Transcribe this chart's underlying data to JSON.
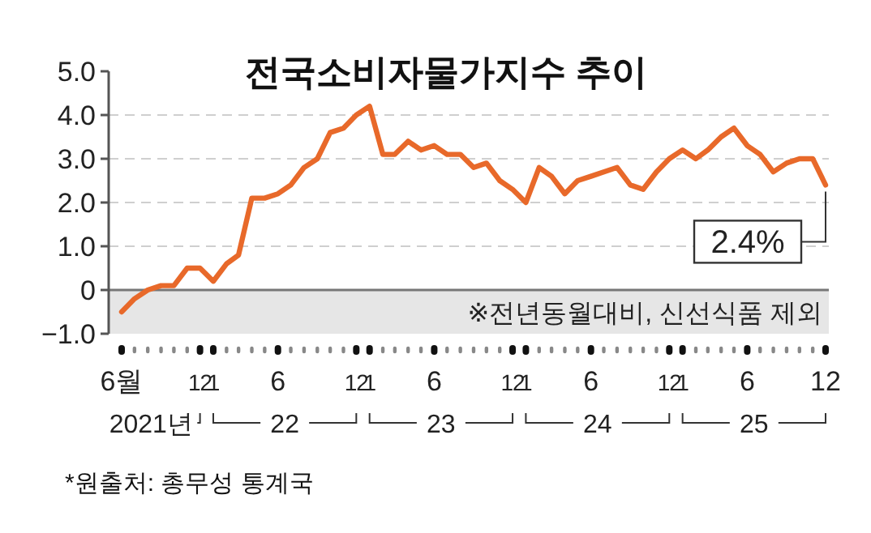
{
  "chart_data": {
    "type": "line",
    "title": "전국소비자물가지수 추이",
    "x": [
      "2021-06",
      "2021-07",
      "2021-08",
      "2021-09",
      "2021-10",
      "2021-11",
      "2021-12",
      "2022-01",
      "2022-02",
      "2022-03",
      "2022-04",
      "2022-05",
      "2022-06",
      "2022-07",
      "2022-08",
      "2022-09",
      "2022-10",
      "2022-11",
      "2022-12",
      "2023-01",
      "2023-02",
      "2023-03",
      "2023-04",
      "2023-05",
      "2023-06",
      "2023-07",
      "2023-08",
      "2023-09",
      "2023-10",
      "2023-11",
      "2023-12",
      "2024-01",
      "2024-02",
      "2024-03",
      "2024-04",
      "2024-05",
      "2024-06",
      "2024-07",
      "2024-08",
      "2024-09",
      "2024-10",
      "2024-11",
      "2024-12",
      "2025-01",
      "2025-02",
      "2025-03",
      "2025-04",
      "2025-05",
      "2025-06",
      "2025-07",
      "2025-08",
      "2025-09",
      "2025-10",
      "2025-11",
      "2025-12"
    ],
    "series": [
      {
        "color": "#e8692a",
        "values": [
          -0.5,
          -0.2,
          0.0,
          0.1,
          0.1,
          0.5,
          0.5,
          0.2,
          0.6,
          0.8,
          2.1,
          2.1,
          2.2,
          2.4,
          2.8,
          3.0,
          3.6,
          3.7,
          4.0,
          4.2,
          3.1,
          3.1,
          3.4,
          3.2,
          3.3,
          3.1,
          3.1,
          2.8,
          2.9,
          2.5,
          2.3,
          2.0,
          2.8,
          2.6,
          2.2,
          2.5,
          2.6,
          2.7,
          2.8,
          2.4,
          2.3,
          2.7,
          3.0,
          3.2,
          3.0,
          3.2,
          3.5,
          3.7,
          3.3,
          3.1,
          2.7,
          2.9,
          3.0,
          3.0,
          2.4
        ]
      }
    ],
    "xlim": [
      "2021-06",
      "2025-12"
    ],
    "xticks": [
      {
        "value": "2021-06",
        "label": "6월"
      },
      {
        "value": "2021-07",
        "label": null
      },
      {
        "value": "2021-08",
        "label": null
      },
      {
        "value": "2021-09",
        "label": null
      },
      {
        "value": "2021-10",
        "label": null
      },
      {
        "value": "2021-11",
        "label": null
      },
      {
        "value": "2021-12",
        "label": "12"
      },
      {
        "value": "2022-01",
        "label": "1"
      },
      {
        "value": "2022-02",
        "label": null
      },
      {
        "value": "2022-03",
        "label": null
      },
      {
        "value": "2022-04",
        "label": null
      },
      {
        "value": "2022-05",
        "label": null
      },
      {
        "value": "2022-06",
        "label": "6"
      },
      {
        "value": "2022-07",
        "label": null
      },
      {
        "value": "2022-08",
        "label": null
      },
      {
        "value": "2022-09",
        "label": null
      },
      {
        "value": "2022-10",
        "label": null
      },
      {
        "value": "2022-11",
        "label": null
      },
      {
        "value": "2022-12",
        "label": "12"
      },
      {
        "value": "2023-01",
        "label": "1"
      },
      {
        "value": "2023-02",
        "label": null
      },
      {
        "value": "2023-03",
        "label": null
      },
      {
        "value": "2023-04",
        "label": null
      },
      {
        "value": "2023-05",
        "label": null
      },
      {
        "value": "2023-06",
        "label": "6"
      },
      {
        "value": "2023-07",
        "label": null
      },
      {
        "value": "2023-08",
        "label": null
      },
      {
        "value": "2023-09",
        "label": null
      },
      {
        "value": "2023-10",
        "label": null
      },
      {
        "value": "2023-11",
        "label": null
      },
      {
        "value": "2023-12",
        "label": "12"
      },
      {
        "value": "2024-01",
        "label": "1"
      },
      {
        "value": "2024-02",
        "label": null
      },
      {
        "value": "2024-03",
        "label": null
      },
      {
        "value": "2024-04",
        "label": null
      },
      {
        "value": "2024-05",
        "label": null
      },
      {
        "value": "2024-06",
        "label": "6"
      },
      {
        "value": "2024-07",
        "label": null
      },
      {
        "value": "2024-08",
        "label": null
      },
      {
        "value": "2024-09",
        "label": null
      },
      {
        "value": "2024-10",
        "label": null
      },
      {
        "value": "2024-11",
        "label": null
      },
      {
        "value": "2024-12",
        "label": "12"
      },
      {
        "value": "2025-01",
        "label": "1"
      },
      {
        "value": "2025-02",
        "label": null
      },
      {
        "value": "2025-03",
        "label": null
      },
      {
        "value": "2025-04",
        "label": null
      },
      {
        "value": "2025-05",
        "label": null
      },
      {
        "value": "2025-06",
        "label": "6"
      },
      {
        "value": "2025-07",
        "label": null
      },
      {
        "value": "2025-08",
        "label": null
      },
      {
        "value": "2025-09",
        "label": null
      },
      {
        "value": "2025-10",
        "label": null
      },
      {
        "value": "2025-11",
        "label": null
      },
      {
        "value": "2025-12",
        "label": "12"
      }
    ],
    "ylim": [
      -1,
      5
    ],
    "yticks": [
      {
        "value": -1,
        "label": "−1.0"
      },
      0,
      {
        "value": 1,
        "label": "1.0"
      },
      {
        "value": 2,
        "label": "2.0"
      },
      {
        "value": 3,
        "label": "3.0"
      },
      {
        "value": 4,
        "label": "4.0"
      },
      {
        "value": 5,
        "label": "5.0"
      }
    ],
    "grid": "y",
    "marker": "none",
    "line_style": "solid",
    "bands": [
      {
        "axis": "y",
        "from": -1,
        "to": 0,
        "label": "※전년동월대비, 신선식품 제외",
        "color": "#e6e6e6"
      }
    ],
    "annotations": [
      {
        "text": "2.4%",
        "x": "2025-12",
        "y": 2.4
      },
      "2021년",
      "22",
      "23",
      "24",
      "25",
      "*원출처: 총무성 통계국"
    ]
  }
}
